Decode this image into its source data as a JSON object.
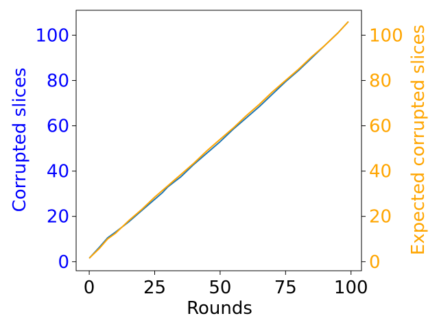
{
  "chart_data": {
    "type": "line",
    "xlabel": "Rounds",
    "ylabel_left": "Corrupted slices",
    "ylabel_right": "Expected corrupted slices",
    "xlim": [
      -5,
      104
    ],
    "ylim_left": [
      -4,
      111
    ],
    "ylim_right": [
      -4,
      111
    ],
    "xticks": [
      0,
      25,
      50,
      75,
      100
    ],
    "yticks_left": [
      0,
      20,
      40,
      60,
      80,
      100
    ],
    "yticks_right": [
      0,
      20,
      40,
      60,
      80,
      100
    ],
    "grid": false,
    "colors": {
      "left_axis": "#0000ff",
      "right_axis": "#ffa500",
      "series_observed": "#1f77b4",
      "series_expected": "#ffa500",
      "frame": "#000000"
    },
    "series": [
      {
        "axis": "left",
        "x": [
          0,
          4,
          7,
          10,
          15,
          20,
          25,
          28,
          30,
          35,
          40,
          45,
          50,
          55,
          60,
          65,
          70,
          75,
          80,
          85,
          90,
          95,
          99
        ],
        "y": [
          1.5,
          6.5,
          10.5,
          13,
          17.5,
          22.5,
          27.5,
          30.5,
          33,
          37.5,
          43,
          48,
          53,
          58.5,
          63.5,
          68.5,
          74,
          79.5,
          84.5,
          90,
          95.5,
          101,
          106
        ]
      },
      {
        "axis": "right",
        "x": [
          0,
          4,
          7,
          10,
          15,
          20,
          25,
          30,
          35,
          40,
          45,
          50,
          55,
          60,
          65,
          70,
          75,
          80,
          85,
          90,
          95,
          99
        ],
        "y": [
          1.5,
          6,
          10,
          12.5,
          18,
          23,
          28.5,
          33.5,
          38.5,
          43.5,
          49,
          54,
          59,
          64.5,
          69.5,
          75,
          80,
          85,
          90.5,
          95.5,
          101,
          106
        ]
      }
    ]
  }
}
